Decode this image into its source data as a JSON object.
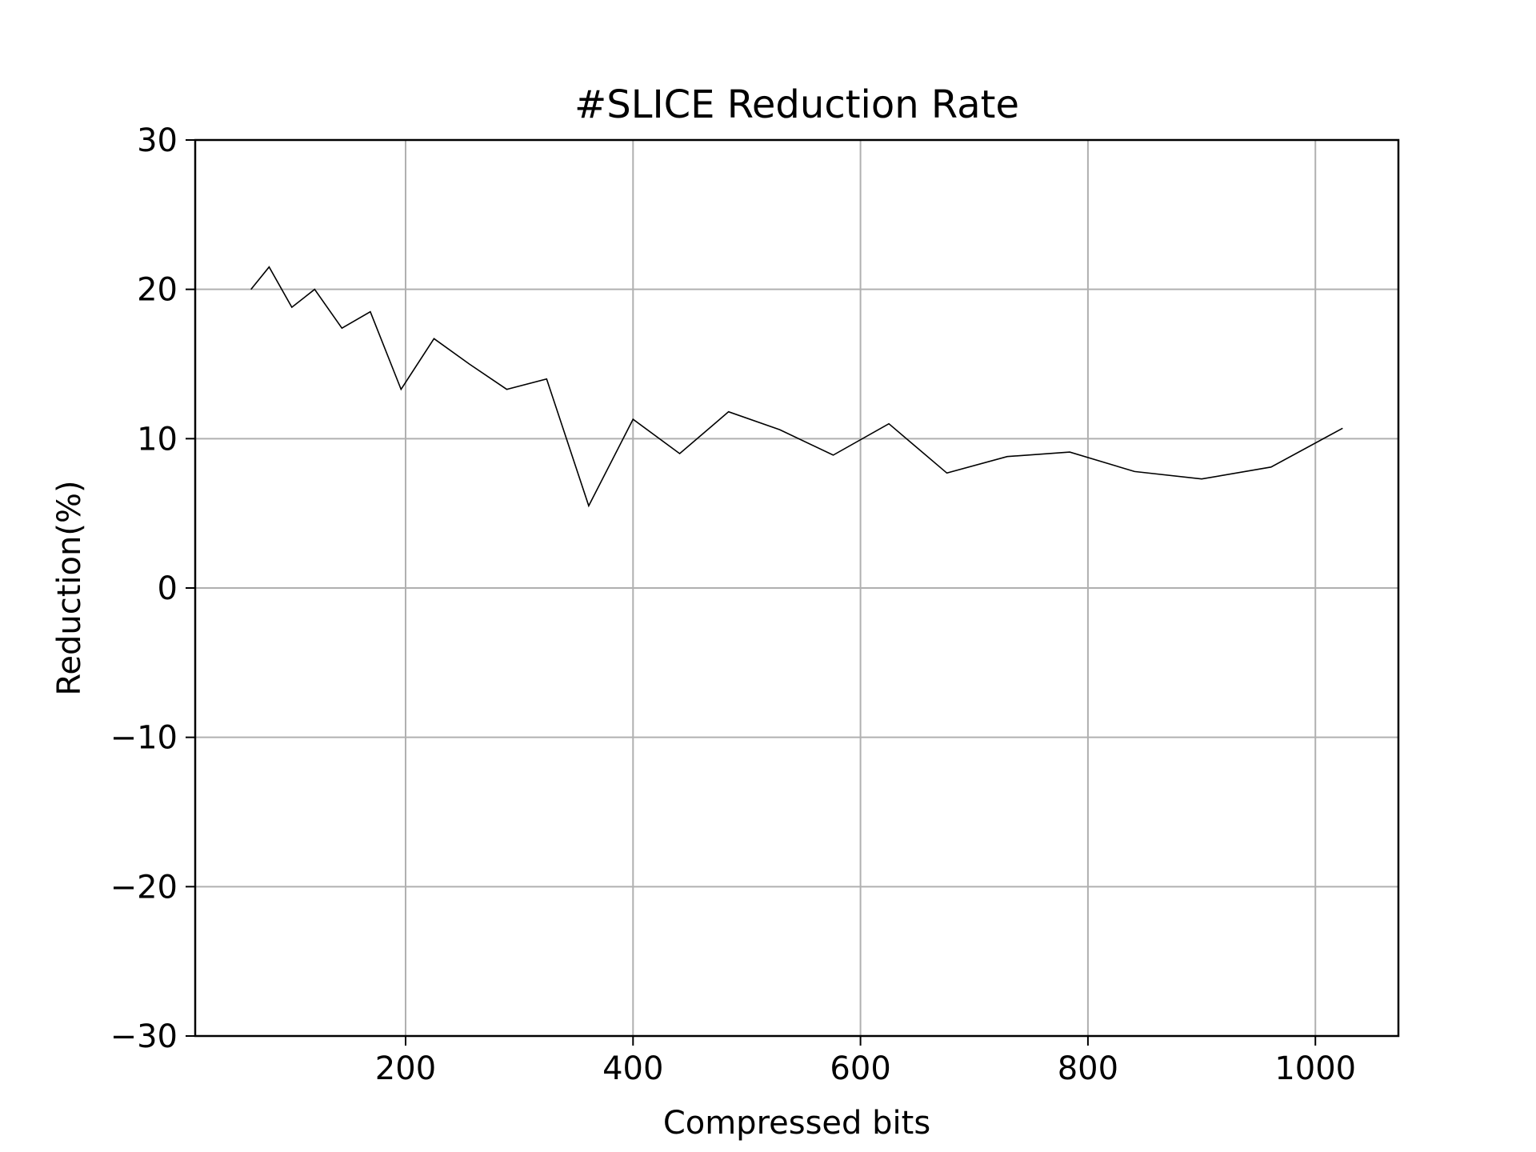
{
  "chart_data": {
    "type": "line",
    "title": "#SLICE Reduction Rate",
    "xlabel": "Compressed bits",
    "ylabel": "Reduction(%)",
    "xlim": [
      15,
      1073
    ],
    "ylim": [
      -30,
      30
    ],
    "xticks": [
      200,
      400,
      600,
      800,
      1000
    ],
    "xtick_labels": [
      "200",
      "400",
      "600",
      "800",
      "1000"
    ],
    "yticks": [
      -30,
      -20,
      -10,
      0,
      10,
      20,
      30
    ],
    "ytick_labels": [
      "−30",
      "−20",
      "−10",
      "0",
      "10",
      "20",
      "30"
    ],
    "grid": true,
    "colors": {
      "line": "#000000",
      "grid": "#b0b0b0",
      "axes": "#000000"
    },
    "series": [
      {
        "x": [
          64,
          80,
          100,
          120,
          144,
          169,
          196,
          225,
          256,
          289,
          324,
          361,
          400,
          441,
          484,
          529,
          576,
          625,
          676,
          729,
          784,
          841,
          900,
          961,
          1024
        ],
        "values": [
          20.0,
          21.5,
          18.8,
          20.0,
          17.4,
          18.5,
          13.3,
          16.7,
          15.0,
          13.3,
          14.0,
          5.5,
          11.3,
          9.0,
          11.8,
          10.6,
          8.9,
          11.0,
          7.7,
          8.8,
          9.1,
          7.8,
          7.3,
          8.1,
          10.7
        ]
      }
    ]
  }
}
